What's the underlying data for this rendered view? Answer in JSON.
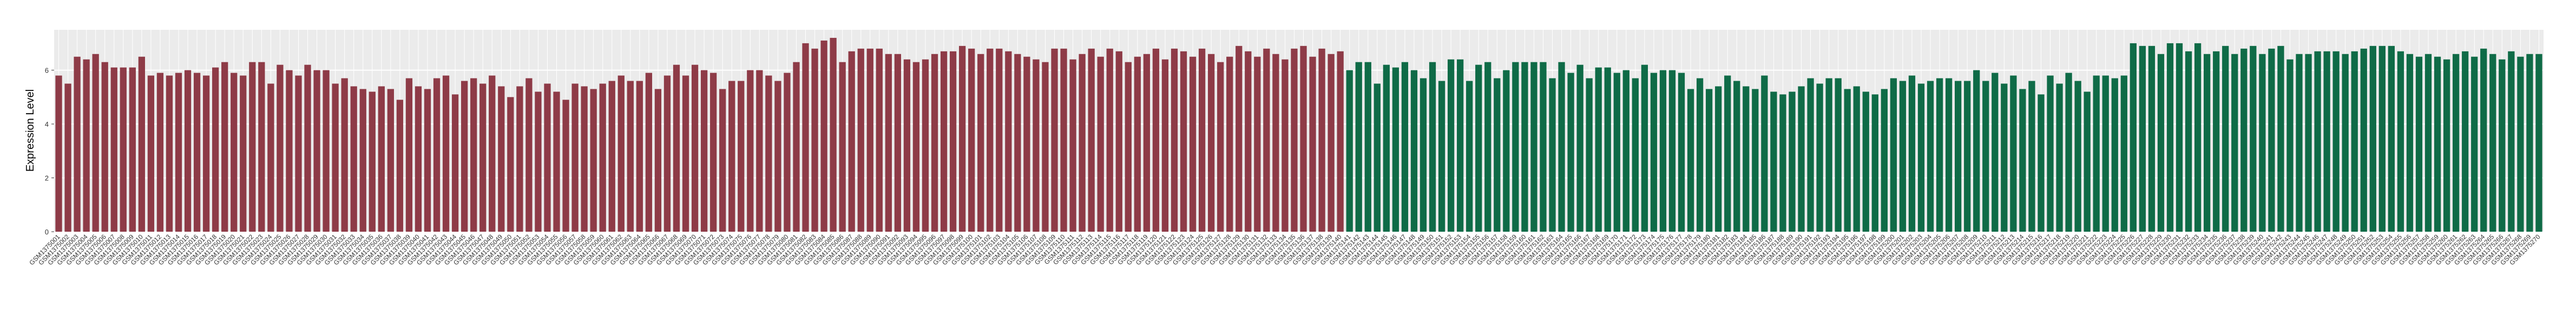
{
  "chart_data": {
    "type": "bar",
    "y_label": "Expression Level",
    "ylim": [
      0,
      7.5
    ],
    "yticks": [
      0,
      2,
      4,
      6
    ],
    "grid": true,
    "series": [
      {
        "color": "#8e3b47",
        "categories": [
          "GSM1375001",
          "GSM1375002",
          "GSM1375003",
          "GSM1375004",
          "GSM1375005",
          "GSM1375006",
          "GSM1375007",
          "GSM1375008",
          "GSM1375009",
          "GSM1375010",
          "GSM1375011",
          "GSM1375012",
          "GSM1375013",
          "GSM1375014",
          "GSM1375015",
          "GSM1375016",
          "GSM1375017",
          "GSM1375018",
          "GSM1375019",
          "GSM1375020",
          "GSM1375021",
          "GSM1375022",
          "GSM1375023",
          "GSM1375024",
          "GSM1375025",
          "GSM1375026",
          "GSM1375027",
          "GSM1375028",
          "GSM1375029",
          "GSM1375030",
          "GSM1375031",
          "GSM1375032",
          "GSM1375033",
          "GSM1375034",
          "GSM1375035",
          "GSM1375036",
          "GSM1375037",
          "GSM1375038",
          "GSM1375039",
          "GSM1375040",
          "GSM1375041",
          "GSM1375042",
          "GSM1375043",
          "GSM1375044",
          "GSM1375045",
          "GSM1375046",
          "GSM1375047",
          "GSM1375048",
          "GSM1375049",
          "GSM1375050",
          "GSM1375051",
          "GSM1375052",
          "GSM1375053",
          "GSM1375054",
          "GSM1375055",
          "GSM1375056",
          "GSM1375057",
          "GSM1375058",
          "GSM1375059",
          "GSM1375060",
          "GSM1375061",
          "GSM1375062",
          "GSM1375063",
          "GSM1375064",
          "GSM1375065",
          "GSM1375066",
          "GSM1375067",
          "GSM1375068",
          "GSM1375069",
          "GSM1375070",
          "GSM1375071",
          "GSM1375072",
          "GSM1375073",
          "GSM1375074",
          "GSM1375075",
          "GSM1375076",
          "GSM1375077",
          "GSM1375078",
          "GSM1375079",
          "GSM1375080",
          "GSM1375081",
          "GSM1375082",
          "GSM1375083",
          "GSM1375084",
          "GSM1375085",
          "GSM1375086",
          "GSM1375087",
          "GSM1375088",
          "GSM1375089",
          "GSM1375090",
          "GSM1375091",
          "GSM1375092",
          "GSM1375093",
          "GSM1375094",
          "GSM1375095",
          "GSM1375096",
          "GSM1375097",
          "GSM1375098",
          "GSM1375099",
          "GSM1375100",
          "GSM1375101",
          "GSM1375102",
          "GSM1375103",
          "GSM1375104",
          "GSM1375105",
          "GSM1375106",
          "GSM1375107",
          "GSM1375108",
          "GSM1375109",
          "GSM1375110",
          "GSM1375111",
          "GSM1375112",
          "GSM1375113",
          "GSM1375114",
          "GSM1375115",
          "GSM1375116",
          "GSM1375117",
          "GSM1375118",
          "GSM1375119",
          "GSM1375120",
          "GSM1375121",
          "GSM1375122",
          "GSM1375123",
          "GSM1375124",
          "GSM1375125",
          "GSM1375126",
          "GSM1375127",
          "GSM1375128",
          "GSM1375129",
          "GSM1375130",
          "GSM1375131",
          "GSM1375132",
          "GSM1375133",
          "GSM1375134",
          "GSM1375135",
          "GSM1375136",
          "GSM1375137",
          "GSM1375138",
          "GSM1375139",
          "GSM1375140"
        ],
        "values": [
          5.8,
          5.5,
          6.5,
          6.4,
          6.6,
          6.3,
          6.1,
          6.1,
          6.1,
          6.5,
          5.8,
          5.9,
          5.8,
          5.9,
          6.0,
          5.9,
          5.8,
          6.1,
          6.3,
          5.9,
          5.8,
          6.3,
          6.3,
          5.5,
          6.2,
          6.0,
          5.8,
          6.2,
          6.0,
          6.0,
          5.5,
          5.7,
          5.4,
          5.3,
          5.2,
          5.4,
          5.3,
          4.9,
          5.7,
          5.4,
          5.3,
          5.7,
          5.8,
          5.1,
          5.6,
          5.7,
          5.5,
          5.8,
          5.4,
          5.0,
          5.4,
          5.7,
          5.2,
          5.5,
          5.2,
          4.9,
          5.5,
          5.4,
          5.3,
          5.5,
          5.6,
          5.8,
          5.6,
          5.6,
          5.9,
          5.3,
          5.8,
          6.2,
          5.8,
          6.2,
          6.0,
          5.9,
          5.3,
          5.6,
          5.6,
          6.0,
          6.0,
          5.8,
          5.6,
          5.9,
          6.3,
          7.0,
          6.8,
          7.1,
          7.2,
          6.3,
          6.7,
          6.8,
          6.8,
          6.8,
          6.6,
          6.6,
          6.4,
          6.3,
          6.4,
          6.6,
          6.7,
          6.7,
          6.9,
          6.8,
          6.6,
          6.8,
          6.8,
          6.7,
          6.6,
          6.5,
          6.4,
          6.3,
          6.8,
          6.8,
          6.4,
          6.6,
          6.8,
          6.5,
          6.8,
          6.7,
          6.3,
          6.5,
          6.6,
          6.8,
          6.4,
          6.8,
          6.7,
          6.5,
          6.8,
          6.6,
          6.3,
          6.5,
          6.9,
          6.7,
          6.5,
          6.8,
          6.6,
          6.4,
          6.8,
          6.9,
          6.5,
          6.8,
          6.6,
          6.7
        ]
      },
      {
        "color": "#0f6b47",
        "categories": [
          "GSM1375141",
          "GSM1375142",
          "GSM1375143",
          "GSM1375144",
          "GSM1375145",
          "GSM1375146",
          "GSM1375147",
          "GSM1375148",
          "GSM1375149",
          "GSM1375150",
          "GSM1375151",
          "GSM1375152",
          "GSM1375153",
          "GSM1375154",
          "GSM1375155",
          "GSM1375156",
          "GSM1375157",
          "GSM1375158",
          "GSM1375159",
          "GSM1375160",
          "GSM1375161",
          "GSM1375162",
          "GSM1375163",
          "GSM1375164",
          "GSM1375165",
          "GSM1375166",
          "GSM1375167",
          "GSM1375168",
          "GSM1375169",
          "GSM1375170",
          "GSM1375171",
          "GSM1375172",
          "GSM1375173",
          "GSM1375174",
          "GSM1375175",
          "GSM1375176",
          "GSM1375177",
          "GSM1375178",
          "GSM1375179",
          "GSM1375180",
          "GSM1375181",
          "GSM1375182",
          "GSM1375183",
          "GSM1375184",
          "GSM1375185",
          "GSM1375186",
          "GSM1375187",
          "GSM1375188",
          "GSM1375189",
          "GSM1375190",
          "GSM1375191",
          "GSM1375192",
          "GSM1375193",
          "GSM1375194",
          "GSM1375195",
          "GSM1375196",
          "GSM1375197",
          "GSM1375198",
          "GSM1375199",
          "GSM1375200",
          "GSM1375201",
          "GSM1375202",
          "GSM1375203",
          "GSM1375204",
          "GSM1375205",
          "GSM1375206",
          "GSM1375207",
          "GSM1375208",
          "GSM1375209",
          "GSM1375210",
          "GSM1375211",
          "GSM1375212",
          "GSM1375213",
          "GSM1375214",
          "GSM1375215",
          "GSM1375216",
          "GSM1375217",
          "GSM1375218",
          "GSM1375219",
          "GSM1375220",
          "GSM1375221",
          "GSM1375222",
          "GSM1375223",
          "GSM1375224",
          "GSM1375225",
          "GSM1375226",
          "GSM1375227",
          "GSM1375228",
          "GSM1375229",
          "GSM1375230",
          "GSM1375231",
          "GSM1375232",
          "GSM1375233",
          "GSM1375234",
          "GSM1375235",
          "GSM1375236",
          "GSM1375237",
          "GSM1375238",
          "GSM1375239",
          "GSM1375240",
          "GSM1375241",
          "GSM1375242",
          "GSM1375243",
          "GSM1375244",
          "GSM1375245",
          "GSM1375246",
          "GSM1375247",
          "GSM1375248",
          "GSM1375249",
          "GSM1375250",
          "GSM1375251",
          "GSM1375252",
          "GSM1375253",
          "GSM1375254",
          "GSM1375255",
          "GSM1375256",
          "GSM1375257",
          "GSM1375258",
          "GSM1375259",
          "GSM1375260",
          "GSM1375261",
          "GSM1375262",
          "GSM1375263",
          "GSM1375264",
          "GSM1375265",
          "GSM1375266",
          "GSM1375267",
          "GSM1375268",
          "GSM1375269",
          "GSM1375270"
        ],
        "values": [
          6.0,
          6.3,
          6.3,
          5.5,
          6.2,
          6.1,
          6.3,
          6.0,
          5.7,
          6.3,
          5.6,
          6.4,
          6.4,
          5.6,
          6.2,
          6.3,
          5.7,
          6.0,
          6.3,
          6.3,
          6.3,
          6.3,
          5.7,
          6.3,
          5.9,
          6.2,
          5.7,
          6.1,
          6.1,
          5.9,
          6.0,
          5.7,
          6.2,
          5.9,
          6.0,
          6.0,
          5.9,
          5.3,
          5.7,
          5.3,
          5.4,
          5.8,
          5.6,
          5.4,
          5.3,
          5.8,
          5.2,
          5.1,
          5.2,
          5.4,
          5.7,
          5.5,
          5.7,
          5.7,
          5.3,
          5.4,
          5.2,
          5.1,
          5.3,
          5.7,
          5.6,
          5.8,
          5.5,
          5.6,
          5.7,
          5.7,
          5.6,
          5.6,
          6.0,
          5.6,
          5.9,
          5.5,
          5.8,
          5.3,
          5.6,
          5.1,
          5.8,
          5.5,
          5.9,
          5.6,
          5.2,
          5.8,
          5.8,
          5.7,
          5.8,
          7.0,
          6.9,
          6.9,
          6.6,
          7.0,
          7.0,
          6.7,
          7.0,
          6.6,
          6.7,
          6.9,
          6.6,
          6.8,
          6.9,
          6.6,
          6.8,
          6.9,
          6.4,
          6.6,
          6.6,
          6.7,
          6.7,
          6.7,
          6.6,
          6.7,
          6.8,
          6.9,
          6.9,
          6.9,
          6.7,
          6.6,
          6.5,
          6.6,
          6.5,
          6.4,
          6.6,
          6.7,
          6.5,
          6.8,
          6.6,
          6.4,
          6.7,
          6.5,
          6.6,
          6.6
        ]
      }
    ]
  }
}
